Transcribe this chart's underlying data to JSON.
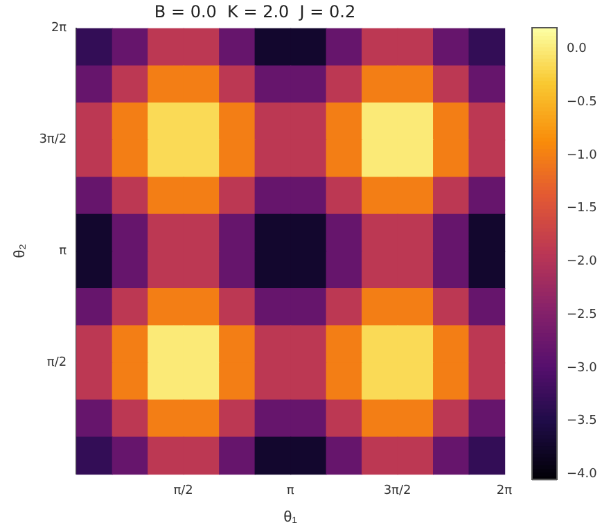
{
  "chart_data": {
    "type": "heatmap",
    "title": "B = 0.0  K = 2.0  J = 0.2",
    "xlabel": "θ₁",
    "ylabel": "θ₂",
    "xlim": [
      0,
      6.2832
    ],
    "ylim": [
      0,
      6.2832
    ],
    "xticks": [
      {
        "value": 1.5708,
        "label": "π/2"
      },
      {
        "value": 3.1416,
        "label": "π"
      },
      {
        "value": 4.7124,
        "label": "3π/2"
      },
      {
        "value": 6.2832,
        "label": "2π"
      }
    ],
    "yticks": [
      {
        "value": 1.5708,
        "label": "π/2"
      },
      {
        "value": 3.1416,
        "label": "π"
      },
      {
        "value": 4.7124,
        "label": "3π/2"
      },
      {
        "value": 6.2832,
        "label": "2π"
      }
    ],
    "cells": [
      [
        -3.31,
        -2.8,
        -1.9,
        -1.9,
        -2.8,
        -3.71,
        -3.71,
        -2.8,
        -1.9,
        -1.9,
        -2.8,
        -3.31
      ],
      [
        -2.8,
        -1.9,
        -1.0,
        -1.0,
        -1.9,
        -2.8,
        -2.8,
        -1.9,
        -1.0,
        -1.0,
        -1.9,
        -2.8
      ],
      [
        -1.9,
        -1.0,
        -0.15,
        -0.15,
        -1.0,
        -1.9,
        -1.9,
        -1.0,
        0.0,
        0.0,
        -1.0,
        -1.9
      ],
      [
        -1.9,
        -1.0,
        -0.15,
        -0.15,
        -1.0,
        -1.9,
        -1.9,
        -1.0,
        0.0,
        0.0,
        -1.0,
        -1.9
      ],
      [
        -2.8,
        -1.9,
        -1.0,
        -1.0,
        -1.9,
        -2.8,
        -2.8,
        -1.9,
        -1.0,
        -1.0,
        -1.9,
        -2.8
      ],
      [
        -3.71,
        -2.8,
        -1.9,
        -1.9,
        -2.8,
        -3.71,
        -3.71,
        -2.8,
        -1.9,
        -1.9,
        -2.8,
        -3.71
      ],
      [
        -3.71,
        -2.8,
        -1.9,
        -1.9,
        -2.8,
        -3.71,
        -3.71,
        -2.8,
        -1.9,
        -1.9,
        -2.8,
        -3.71
      ],
      [
        -2.8,
        -1.9,
        -1.0,
        -1.0,
        -1.9,
        -2.8,
        -2.8,
        -1.9,
        -1.0,
        -1.0,
        -1.9,
        -2.8
      ],
      [
        -1.9,
        -1.0,
        0.0,
        0.0,
        -1.0,
        -1.9,
        -1.9,
        -1.0,
        -0.15,
        -0.15,
        -1.0,
        -1.9
      ],
      [
        -1.9,
        -1.0,
        0.0,
        0.0,
        -1.0,
        -1.9,
        -1.9,
        -1.0,
        -0.15,
        -0.15,
        -1.0,
        -1.9
      ],
      [
        -2.8,
        -1.9,
        -1.0,
        -1.0,
        -1.9,
        -2.8,
        -2.8,
        -1.9,
        -1.0,
        -1.0,
        -1.9,
        -2.8
      ],
      [
        -3.31,
        -2.8,
        -1.9,
        -1.9,
        -2.8,
        -3.71,
        -3.71,
        -2.8,
        -1.9,
        -1.9,
        -2.8,
        -3.31
      ]
    ],
    "clim": [
      -4.05,
      0.2
    ],
    "cticks": [
      {
        "value": 0,
        "label": "0.0"
      },
      {
        "value": -0.5,
        "label": "−0.5"
      },
      {
        "value": -1,
        "label": "−1.0"
      },
      {
        "value": -1.5,
        "label": "−1.5"
      },
      {
        "value": -2,
        "label": "−2.0"
      },
      {
        "value": -2.5,
        "label": "−2.5"
      },
      {
        "value": -3,
        "label": "−3.0"
      },
      {
        "value": -3.5,
        "label": "−3.5"
      },
      {
        "value": -4,
        "label": "−4.0"
      }
    ]
  }
}
